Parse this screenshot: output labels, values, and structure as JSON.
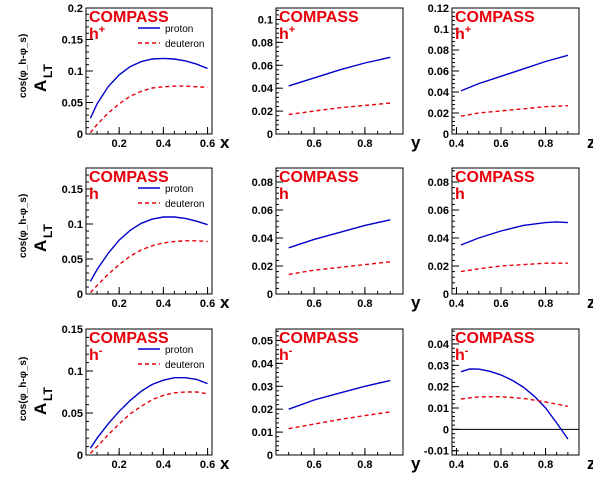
{
  "experiment_label": "COMPASS",
  "y_axis_label": {
    "main": "A",
    "sub": "LT",
    "sup": "cos(φ_h-φ_s)"
  },
  "colors": {
    "proton": "#0000cc",
    "deuteron": "#e8000b",
    "label": "#e8000b",
    "axis": "#000000"
  },
  "chart_data": [
    {
      "type": "line",
      "row": 0,
      "col": 0,
      "hadron": "h",
      "charge": "+",
      "xlabel": "x",
      "legend": true,
      "xlim": [
        0.05,
        0.62
      ],
      "ylim": [
        0,
        0.2
      ],
      "x_ticks": [
        0.2,
        0.4,
        0.6
      ],
      "y_ticks": [
        0,
        0.05,
        0.1,
        0.15,
        0.2
      ],
      "y_tick_labels": [
        "0",
        "0.05",
        "0.1",
        "0.15",
        "0.2"
      ],
      "series": [
        {
          "name": "proton",
          "style": "solid",
          "x": [
            0.07,
            0.1,
            0.15,
            0.2,
            0.25,
            0.3,
            0.35,
            0.4,
            0.45,
            0.5,
            0.55,
            0.6
          ],
          "y": [
            0.025,
            0.048,
            0.075,
            0.094,
            0.107,
            0.115,
            0.119,
            0.12,
            0.119,
            0.116,
            0.111,
            0.104
          ]
        },
        {
          "name": "deuteron",
          "style": "dashed",
          "x": [
            0.07,
            0.1,
            0.15,
            0.2,
            0.25,
            0.3,
            0.35,
            0.4,
            0.45,
            0.5,
            0.55,
            0.6
          ],
          "y": [
            0.002,
            0.015,
            0.033,
            0.048,
            0.06,
            0.068,
            0.073,
            0.075,
            0.076,
            0.076,
            0.075,
            0.074
          ]
        }
      ]
    },
    {
      "type": "line",
      "row": 0,
      "col": 1,
      "hadron": "h",
      "charge": "+",
      "xlabel": "y",
      "legend": false,
      "xlim": [
        0.45,
        0.95
      ],
      "ylim": [
        0,
        0.11
      ],
      "x_ticks": [
        0.6,
        0.8
      ],
      "y_ticks": [
        0,
        0.02,
        0.04,
        0.06,
        0.08,
        0.1
      ],
      "y_tick_labels": [
        "0",
        "0.02",
        "0.04",
        "0.06",
        "0.08",
        "0.1"
      ],
      "series": [
        {
          "name": "proton",
          "style": "solid",
          "x": [
            0.5,
            0.6,
            0.7,
            0.8,
            0.9
          ],
          "y": [
            0.042,
            0.049,
            0.056,
            0.062,
            0.067
          ]
        },
        {
          "name": "deuteron",
          "style": "dashed",
          "x": [
            0.5,
            0.6,
            0.7,
            0.8,
            0.9
          ],
          "y": [
            0.017,
            0.02,
            0.023,
            0.025,
            0.027
          ]
        }
      ]
    },
    {
      "type": "line",
      "row": 0,
      "col": 2,
      "hadron": "h",
      "charge": "+",
      "xlabel": "z",
      "legend": false,
      "xlim": [
        0.38,
        0.95
      ],
      "ylim": [
        0,
        0.12
      ],
      "x_ticks": [
        0.4,
        0.6,
        0.8
      ],
      "y_ticks": [
        0,
        0.02,
        0.04,
        0.06,
        0.08,
        0.1,
        0.12
      ],
      "y_tick_labels": [
        "0",
        "0.02",
        "0.04",
        "0.06",
        "0.08",
        "0.1",
        "0.12"
      ],
      "series": [
        {
          "name": "proton",
          "style": "solid",
          "x": [
            0.42,
            0.5,
            0.6,
            0.7,
            0.8,
            0.9
          ],
          "y": [
            0.041,
            0.048,
            0.055,
            0.062,
            0.069,
            0.075
          ]
        },
        {
          "name": "deuteron",
          "style": "dashed",
          "x": [
            0.42,
            0.5,
            0.6,
            0.7,
            0.8,
            0.9
          ],
          "y": [
            0.017,
            0.02,
            0.022,
            0.024,
            0.026,
            0.027
          ]
        }
      ]
    },
    {
      "type": "line",
      "row": 1,
      "col": 0,
      "hadron": "h",
      "charge": "",
      "xlabel": "x",
      "legend": true,
      "xlim": [
        0.05,
        0.62
      ],
      "ylim": [
        0,
        0.18
      ],
      "x_ticks": [
        0.2,
        0.4,
        0.6
      ],
      "y_ticks": [
        0,
        0.05,
        0.1,
        0.15
      ],
      "y_tick_labels": [
        "0",
        "0.05",
        "0.1",
        "0.15"
      ],
      "series": [
        {
          "name": "proton",
          "style": "solid",
          "x": [
            0.07,
            0.1,
            0.15,
            0.2,
            0.25,
            0.3,
            0.35,
            0.4,
            0.45,
            0.5,
            0.55,
            0.6
          ],
          "y": [
            0.018,
            0.035,
            0.058,
            0.077,
            0.091,
            0.101,
            0.107,
            0.11,
            0.11,
            0.108,
            0.104,
            0.099
          ]
        },
        {
          "name": "deuteron",
          "style": "dashed",
          "x": [
            0.07,
            0.1,
            0.15,
            0.2,
            0.25,
            0.3,
            0.35,
            0.4,
            0.45,
            0.5,
            0.55,
            0.6
          ],
          "y": [
            0.002,
            0.012,
            0.028,
            0.042,
            0.054,
            0.063,
            0.069,
            0.073,
            0.075,
            0.076,
            0.076,
            0.075
          ]
        }
      ]
    },
    {
      "type": "line",
      "row": 1,
      "col": 1,
      "hadron": "h",
      "charge": "",
      "xlabel": "y",
      "legend": false,
      "xlim": [
        0.45,
        0.95
      ],
      "ylim": [
        0,
        0.09
      ],
      "x_ticks": [
        0.6,
        0.8
      ],
      "y_ticks": [
        0,
        0.02,
        0.04,
        0.06,
        0.08
      ],
      "y_tick_labels": [
        "0",
        "0.02",
        "0.04",
        "0.06",
        "0.08"
      ],
      "series": [
        {
          "name": "proton",
          "style": "solid",
          "x": [
            0.5,
            0.6,
            0.7,
            0.8,
            0.9
          ],
          "y": [
            0.033,
            0.039,
            0.044,
            0.049,
            0.053
          ]
        },
        {
          "name": "deuteron",
          "style": "dashed",
          "x": [
            0.5,
            0.6,
            0.7,
            0.8,
            0.9
          ],
          "y": [
            0.014,
            0.017,
            0.019,
            0.021,
            0.023
          ]
        }
      ]
    },
    {
      "type": "line",
      "row": 1,
      "col": 2,
      "hadron": "h",
      "charge": "",
      "xlabel": "z",
      "legend": false,
      "xlim": [
        0.38,
        0.95
      ],
      "ylim": [
        0,
        0.09
      ],
      "x_ticks": [
        0.4,
        0.6,
        0.8
      ],
      "y_ticks": [
        0,
        0.02,
        0.04,
        0.06,
        0.08
      ],
      "y_tick_labels": [
        "0",
        "0.02",
        "0.04",
        "0.06",
        "0.08"
      ],
      "series": [
        {
          "name": "proton",
          "style": "solid",
          "x": [
            0.42,
            0.5,
            0.6,
            0.7,
            0.8,
            0.85,
            0.9
          ],
          "y": [
            0.035,
            0.04,
            0.045,
            0.049,
            0.051,
            0.0515,
            0.051
          ]
        },
        {
          "name": "deuteron",
          "style": "dashed",
          "x": [
            0.42,
            0.5,
            0.6,
            0.7,
            0.8,
            0.9
          ],
          "y": [
            0.016,
            0.018,
            0.02,
            0.021,
            0.022,
            0.022
          ]
        }
      ]
    },
    {
      "type": "line",
      "row": 2,
      "col": 0,
      "hadron": "h",
      "charge": "-",
      "xlabel": "x",
      "legend": true,
      "xlim": [
        0.05,
        0.62
      ],
      "ylim": [
        0,
        0.15
      ],
      "x_ticks": [
        0.2,
        0.4,
        0.6
      ],
      "y_ticks": [
        0,
        0.05,
        0.1,
        0.15
      ],
      "y_tick_labels": [
        "0",
        "0.05",
        "0.1",
        "0.15"
      ],
      "series": [
        {
          "name": "proton",
          "style": "solid",
          "x": [
            0.07,
            0.1,
            0.15,
            0.2,
            0.25,
            0.3,
            0.35,
            0.4,
            0.45,
            0.5,
            0.55,
            0.6
          ],
          "y": [
            0.008,
            0.02,
            0.037,
            0.052,
            0.065,
            0.076,
            0.084,
            0.089,
            0.092,
            0.092,
            0.09,
            0.085
          ]
        },
        {
          "name": "deuteron",
          "style": "dashed",
          "x": [
            0.07,
            0.1,
            0.15,
            0.2,
            0.25,
            0.3,
            0.35,
            0.4,
            0.45,
            0.5,
            0.55,
            0.6
          ],
          "y": [
            0.002,
            0.01,
            0.024,
            0.037,
            0.049,
            0.058,
            0.066,
            0.071,
            0.074,
            0.075,
            0.075,
            0.073
          ]
        }
      ]
    },
    {
      "type": "line",
      "row": 2,
      "col": 1,
      "hadron": "h",
      "charge": "-",
      "xlabel": "y",
      "legend": false,
      "xlim": [
        0.45,
        0.95
      ],
      "ylim": [
        0,
        0.055
      ],
      "x_ticks": [
        0.6,
        0.8
      ],
      "y_ticks": [
        0,
        0.01,
        0.02,
        0.03,
        0.04,
        0.05
      ],
      "y_tick_labels": [
        "0",
        "0.01",
        "0.02",
        "0.03",
        "0.04",
        "0.05"
      ],
      "series": [
        {
          "name": "proton",
          "style": "solid",
          "x": [
            0.5,
            0.6,
            0.7,
            0.8,
            0.9
          ],
          "y": [
            0.02,
            0.024,
            0.027,
            0.03,
            0.0325
          ]
        },
        {
          "name": "deuteron",
          "style": "dashed",
          "x": [
            0.5,
            0.6,
            0.7,
            0.8,
            0.9
          ],
          "y": [
            0.0115,
            0.0135,
            0.0155,
            0.0172,
            0.0188
          ]
        }
      ]
    },
    {
      "type": "line",
      "row": 2,
      "col": 2,
      "hadron": "h",
      "charge": "-",
      "xlabel": "z",
      "legend": false,
      "xlim": [
        0.38,
        0.95
      ],
      "ylim": [
        -0.012,
        0.047
      ],
      "x_ticks": [
        0.4,
        0.6,
        0.8
      ],
      "y_ticks": [
        -0.01,
        0,
        0.01,
        0.02,
        0.03,
        0.04
      ],
      "y_tick_labels": [
        "-0.01",
        "0",
        "0.01",
        "0.02",
        "0.03",
        "0.04"
      ],
      "zero_line": true,
      "series": [
        {
          "name": "proton",
          "style": "solid",
          "x": [
            0.42,
            0.46,
            0.5,
            0.55,
            0.6,
            0.65,
            0.7,
            0.75,
            0.8,
            0.85,
            0.9
          ],
          "y": [
            0.027,
            0.0283,
            0.0282,
            0.0272,
            0.0255,
            0.023,
            0.0198,
            0.0155,
            0.01,
            0.003,
            -0.0045
          ]
        },
        {
          "name": "deuteron",
          "style": "dashed",
          "x": [
            0.42,
            0.5,
            0.6,
            0.7,
            0.8,
            0.9
          ],
          "y": [
            0.0142,
            0.0152,
            0.0153,
            0.0145,
            0.0128,
            0.0108
          ]
        }
      ]
    }
  ]
}
